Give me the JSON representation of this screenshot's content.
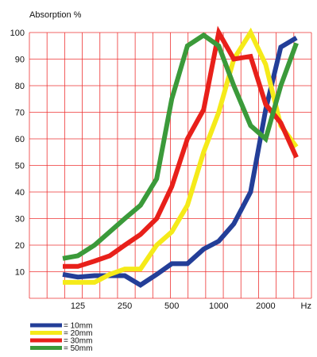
{
  "chart_data": {
    "type": "line",
    "title": "",
    "ylabel": "Absorption %",
    "xlabel": "",
    "x_unit": "Hz",
    "x_scale": "log",
    "ylim": [
      0,
      100
    ],
    "y_ticks": [
      10,
      20,
      30,
      40,
      50,
      60,
      70,
      80,
      90,
      100
    ],
    "x_ticks": [
      125,
      250,
      500,
      1000,
      2000
    ],
    "grid": true,
    "grid_color": "#ee3333",
    "legend_position": "bottom-left",
    "series": [
      {
        "name": "= 10mm",
        "color": "#233e98",
        "x": [
          100,
          125,
          160,
          200,
          250,
          315,
          400,
          500,
          630,
          800,
          1000,
          1250,
          1600,
          2000,
          2500,
          3150
        ],
        "y": [
          9,
          8,
          8.5,
          8.5,
          8.5,
          5,
          9,
          13,
          13,
          18.5,
          21.5,
          28,
          40,
          71,
          94.5,
          98
        ]
      },
      {
        "name": "= 20mm",
        "color": "#f5ea19",
        "x": [
          100,
          125,
          160,
          200,
          250,
          315,
          400,
          500,
          630,
          800,
          1000,
          1250,
          1600,
          2000,
          2500,
          3150
        ],
        "y": [
          6,
          6,
          6,
          9,
          11,
          11,
          20,
          25,
          35,
          55,
          70,
          90,
          100,
          88,
          65,
          57
        ]
      },
      {
        "name": "= 30mm",
        "color": "#e8201a",
        "x": [
          100,
          125,
          160,
          200,
          250,
          315,
          400,
          500,
          630,
          800,
          1000,
          1250,
          1600,
          2000,
          2500,
          3150
        ],
        "y": [
          12,
          12,
          14,
          16,
          20,
          24,
          30,
          42,
          60,
          71,
          100,
          90,
          91,
          73,
          66,
          53
        ]
      },
      {
        "name": "= 50mm",
        "color": "#3b9a3a",
        "x": [
          100,
          125,
          160,
          200,
          250,
          315,
          400,
          500,
          630,
          800,
          1000,
          1250,
          1600,
          2000,
          2500,
          3150
        ],
        "y": [
          15,
          16,
          20,
          25,
          30,
          35,
          45,
          75,
          95,
          99,
          95,
          80,
          65,
          60,
          80,
          96
        ]
      }
    ]
  }
}
